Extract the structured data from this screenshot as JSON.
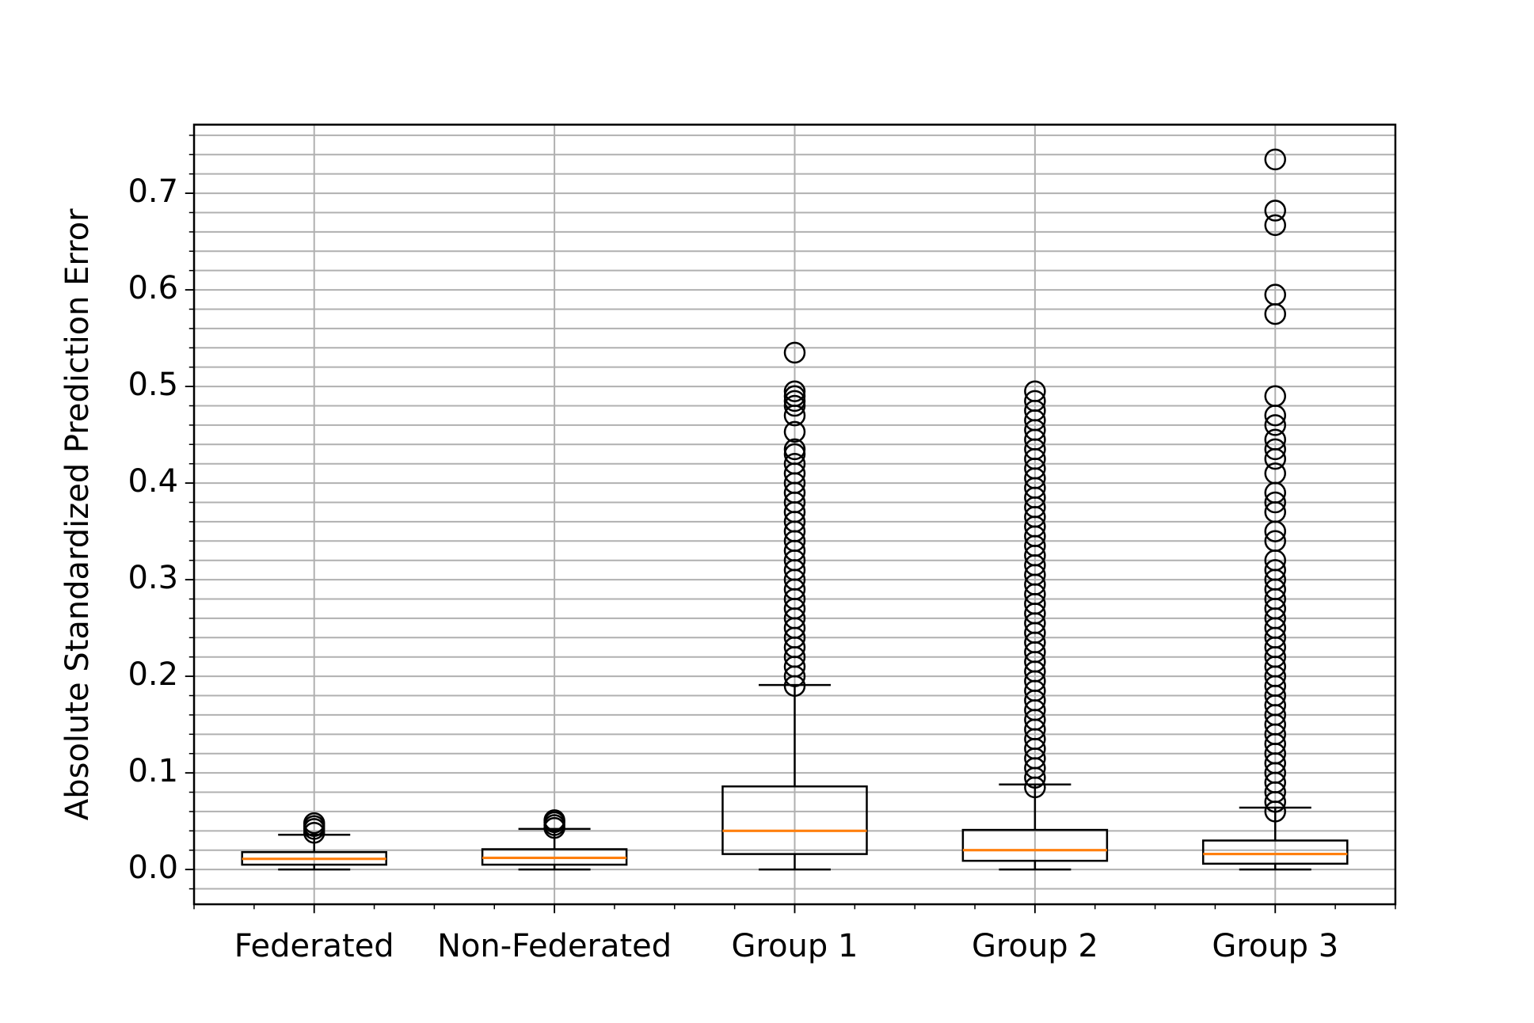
{
  "chart_data": {
    "type": "box",
    "y_label": "Absolute Standardized Prediction Error",
    "categories": [
      "Federated",
      "Non-Federated",
      "Group 1",
      "Group 2",
      "Group 3"
    ],
    "box_color": "#000000",
    "median_color": "#ff7f0e",
    "grid": true,
    "ylim": [
      -0.036,
      0.771
    ],
    "yticks": [
      {
        "value": 0,
        "label": "0.0"
      },
      0.1,
      0.2,
      0.3,
      0.4,
      0.5,
      0.6,
      0.7
    ],
    "minor_yticks": [
      -0.02,
      0.02,
      0.04,
      0.06,
      0.08,
      0.12,
      0.14,
      0.16,
      0.18,
      0.22,
      0.24,
      0.26,
      0.28,
      0.32,
      0.34,
      0.36,
      0.38,
      0.42,
      0.44,
      0.46,
      0.48,
      0.52,
      0.54,
      0.56,
      0.58,
      0.62,
      0.64,
      0.66,
      0.68,
      0.72,
      0.74,
      0.76
    ],
    "boxes": [
      {
        "whislo": 0,
        "q1": 0.005,
        "med": 0.011,
        "q3": 0.018,
        "whishi": 0.036,
        "fliers": [
          0.038,
          0.042,
          0.045,
          0.048
        ]
      },
      {
        "whislo": 0,
        "q1": 0.005,
        "med": 0.012,
        "q3": 0.021,
        "whishi": 0.042,
        "fliers": [
          0.043,
          0.046,
          0.049,
          0.051
        ]
      },
      {
        "whislo": 0,
        "q1": 0.016,
        "med": 0.04,
        "q3": 0.086,
        "whishi": 0.191,
        "fliers": [
          0.19,
          0.2,
          0.21,
          0.22,
          0.23,
          0.24,
          0.25,
          0.26,
          0.27,
          0.28,
          0.29,
          0.3,
          0.31,
          0.32,
          0.33,
          0.34,
          0.35,
          0.36,
          0.37,
          0.38,
          0.39,
          0.4,
          0.41,
          0.42,
          0.43,
          0.435,
          0.453,
          0.47,
          0.48,
          0.485,
          0.49,
          0.495,
          0.535
        ]
      },
      {
        "whislo": 0,
        "q1": 0.009,
        "med": 0.02,
        "q3": 0.041,
        "whishi": 0.088,
        "fliers": [
          0.085,
          0.095,
          0.105,
          0.115,
          0.125,
          0.135,
          0.145,
          0.155,
          0.165,
          0.175,
          0.185,
          0.195,
          0.205,
          0.215,
          0.225,
          0.235,
          0.245,
          0.255,
          0.265,
          0.275,
          0.285,
          0.295,
          0.305,
          0.315,
          0.325,
          0.335,
          0.345,
          0.355,
          0.365,
          0.375,
          0.385,
          0.395,
          0.405,
          0.415,
          0.425,
          0.435,
          0.445,
          0.455,
          0.465,
          0.475,
          0.485,
          0.495
        ]
      },
      {
        "whislo": 0,
        "q1": 0.006,
        "med": 0.016,
        "q3": 0.03,
        "whishi": 0.064,
        "fliers": [
          0.06,
          0.07,
          0.08,
          0.09,
          0.1,
          0.11,
          0.12,
          0.13,
          0.14,
          0.15,
          0.16,
          0.17,
          0.18,
          0.19,
          0.2,
          0.21,
          0.22,
          0.23,
          0.24,
          0.25,
          0.26,
          0.27,
          0.28,
          0.29,
          0.3,
          0.31,
          0.32,
          0.34,
          0.35,
          0.37,
          0.38,
          0.39,
          0.41,
          0.425,
          0.435,
          0.445,
          0.46,
          0.47,
          0.49,
          0.575,
          0.595,
          0.667,
          0.682,
          0.735
        ]
      }
    ]
  }
}
